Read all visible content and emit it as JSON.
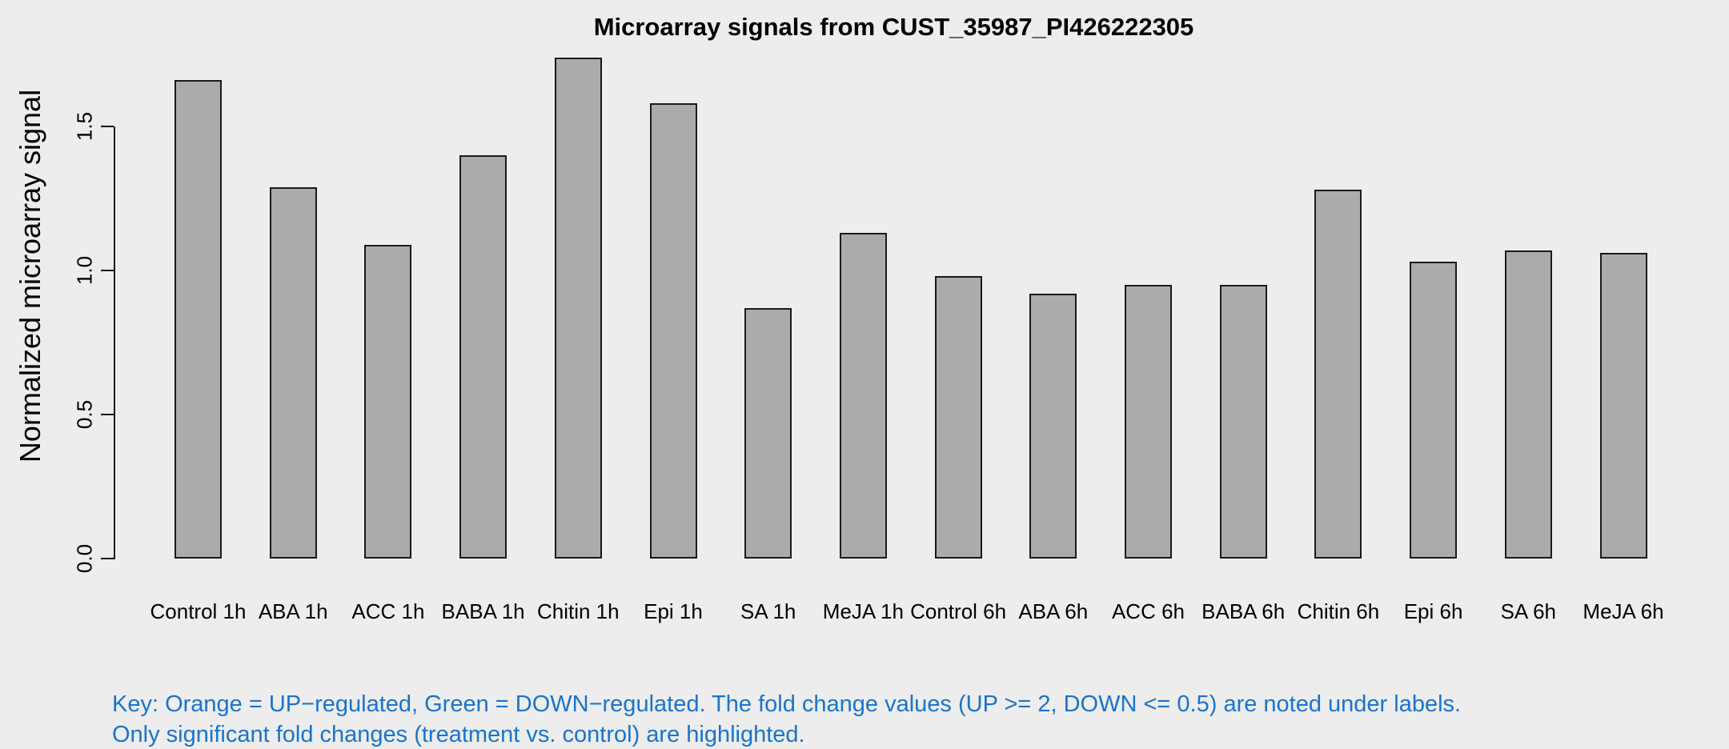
{
  "chart_data": {
    "type": "bar",
    "title": "Microarray signals from CUST_35987_PI426222305",
    "xlabel": "",
    "ylabel": "Normalized microarray signal",
    "categories": [
      "Control 1h",
      "ABA 1h",
      "ACC 1h",
      "BABA 1h",
      "Chitin 1h",
      "Epi 1h",
      "SA 1h",
      "MeJA 1h",
      "Control 6h",
      "ABA 6h",
      "ACC 6h",
      "BABA 6h",
      "Chitin 6h",
      "Epi 6h",
      "SA 6h",
      "MeJA 6h"
    ],
    "values": [
      1.66,
      1.29,
      1.09,
      1.4,
      1.74,
      1.58,
      0.87,
      1.13,
      0.98,
      0.92,
      0.95,
      0.95,
      1.28,
      1.03,
      1.07,
      1.06
    ],
    "yticks": [
      0.0,
      0.5,
      1.0,
      1.5
    ],
    "ylim": [
      0,
      1.8
    ],
    "grid": false,
    "legend": "none",
    "bar_color": "#ABABAB",
    "bar_border_color": "#1A1A1A"
  },
  "footnote": {
    "line1": "Key: Orange = UP−regulated, Green = DOWN−regulated. The fold change values (UP >= 2, DOWN <= 0.5) are noted under labels.",
    "line2": "Only significant fold changes (treatment vs. control) are highlighted.",
    "color": "#1874CD"
  },
  "colors": {
    "background": "#EDEDED",
    "axis": "#1A1A1A",
    "text": "#000000"
  }
}
